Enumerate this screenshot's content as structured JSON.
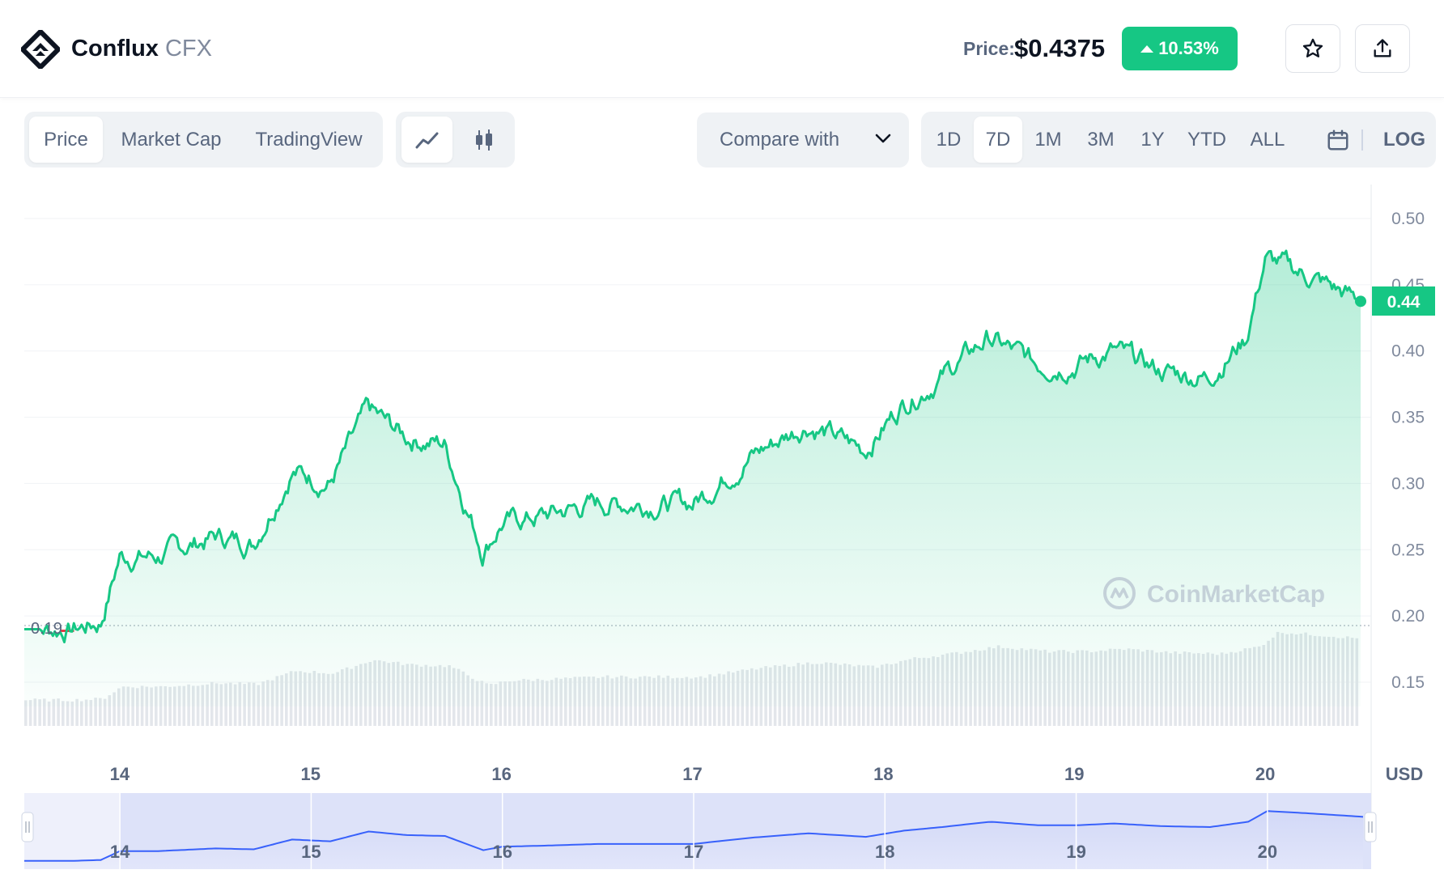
{
  "header": {
    "coin_name": "Conflux",
    "coin_symbol": "CFX",
    "price_label": "Price:",
    "price_value": "$0.4375",
    "change_pct": "10.53%",
    "change_direction": "up",
    "star_icon": "star-icon",
    "share_icon": "share-icon",
    "brand_color": "#16c784"
  },
  "toolbar": {
    "view_tabs": [
      {
        "label": "Price",
        "active": true
      },
      {
        "label": "Market Cap",
        "active": false
      },
      {
        "label": "TradingView",
        "active": false
      }
    ],
    "chart_type_icons": [
      "line-chart-icon",
      "candlestick-icon"
    ],
    "active_chart_type": "line",
    "compare_label": "Compare with",
    "ranges": [
      {
        "label": "1D",
        "active": false
      },
      {
        "label": "7D",
        "active": true
      },
      {
        "label": "1M",
        "active": false
      },
      {
        "label": "3M",
        "active": false
      },
      {
        "label": "1Y",
        "active": false
      },
      {
        "label": "YTD",
        "active": false
      },
      {
        "label": "ALL",
        "active": false
      }
    ],
    "calendar_icon": "calendar-icon",
    "log_label": "LOG"
  },
  "chart_data": {
    "type": "line",
    "y_ticks": [
      "0.50",
      "0.45",
      "0.40",
      "0.35",
      "0.30",
      "0.25",
      "0.20",
      "0.15"
    ],
    "ylim": [
      0.15,
      0.5
    ],
    "x_ticks": [
      "14",
      "15",
      "16",
      "17",
      "18",
      "19",
      "20"
    ],
    "x_ticks_navigator": [
      "14",
      "15",
      "16",
      "17",
      "18",
      "19",
      "20"
    ],
    "currency_label": "USD",
    "current_price_label": "0.44",
    "baseline_label": "0.19",
    "watermark": "CoinMarketCap",
    "series": [
      {
        "x": [
          13.5,
          13.75,
          13.9,
          14.0,
          14.2,
          14.5,
          14.7,
          14.9,
          15.1,
          15.3,
          15.5,
          15.7,
          15.9,
          16.0,
          16.2,
          16.5,
          16.8,
          17.0,
          17.3,
          17.6,
          17.9,
          18.1,
          18.3,
          18.55,
          18.8,
          19.0,
          19.2,
          19.45,
          19.7,
          19.9,
          20.0,
          20.25,
          20.5
        ],
        "values": [
          0.19,
          0.19,
          0.195,
          0.245,
          0.245,
          0.26,
          0.255,
          0.31,
          0.3,
          0.355,
          0.335,
          0.33,
          0.25,
          0.27,
          0.275,
          0.285,
          0.285,
          0.285,
          0.32,
          0.345,
          0.325,
          0.36,
          0.38,
          0.41,
          0.39,
          0.39,
          0.4,
          0.385,
          0.38,
          0.41,
          0.47,
          0.455,
          0.4375
        ]
      }
    ]
  }
}
